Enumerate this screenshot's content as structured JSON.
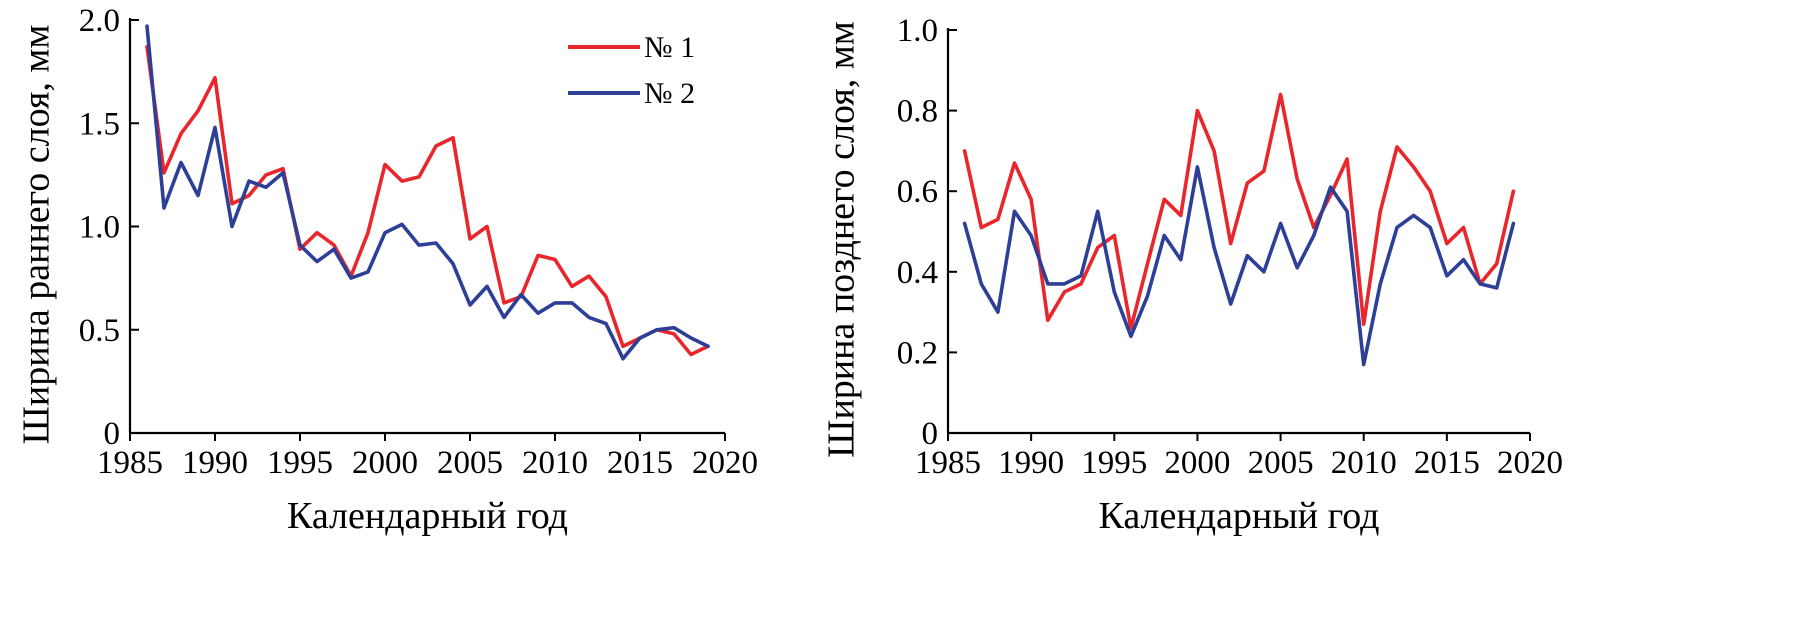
{
  "chart_data": [
    {
      "type": "line",
      "xlabel": "Календарный год",
      "ylabel": "Ширина раннего слоя, мм",
      "xlim": [
        1985,
        2020
      ],
      "ylim": [
        0,
        2.0
      ],
      "xticks": [
        1985,
        1990,
        1995,
        2000,
        2005,
        2010,
        2015,
        2020
      ],
      "xtick_labels": [
        "1985",
        "1990",
        "1995",
        "2000",
        "2005",
        "2010",
        "2015",
        "2020"
      ],
      "yticks": [
        0,
        0.5,
        1.0,
        1.5,
        2.0
      ],
      "ytick_labels": [
        "0",
        "0.5",
        "1.0",
        "1.5",
        "2.0"
      ],
      "legend": "top-right",
      "x": [
        1986,
        1987,
        1988,
        1989,
        1990,
        1991,
        1992,
        1993,
        1994,
        1995,
        1996,
        1997,
        1998,
        1999,
        2000,
        2001,
        2002,
        2003,
        2004,
        2005,
        2006,
        2007,
        2008,
        2009,
        2010,
        2011,
        2012,
        2013,
        2014,
        2015,
        2016,
        2017,
        2018,
        2019
      ],
      "series": [
        {
          "name": "№ 1",
          "color": "#e8262b",
          "values": [
            1.87,
            1.26,
            1.45,
            1.56,
            1.72,
            1.11,
            1.15,
            1.25,
            1.28,
            0.89,
            0.97,
            0.91,
            0.76,
            0.97,
            1.3,
            1.22,
            1.24,
            1.39,
            1.43,
            0.94,
            1.0,
            0.63,
            0.66,
            0.86,
            0.84,
            0.71,
            0.76,
            0.66,
            0.42,
            0.46,
            0.5,
            0.48,
            0.38,
            0.42
          ]
        },
        {
          "name": "№ 2",
          "color": "#2d3f97",
          "values": [
            1.97,
            1.09,
            1.31,
            1.15,
            1.48,
            1.0,
            1.22,
            1.19,
            1.26,
            0.91,
            0.83,
            0.89,
            0.75,
            0.78,
            0.97,
            1.01,
            0.91,
            0.92,
            0.82,
            0.62,
            0.71,
            0.56,
            0.67,
            0.58,
            0.63,
            0.63,
            0.56,
            0.53,
            0.36,
            0.46,
            0.5,
            0.51,
            0.46,
            0.42
          ]
        }
      ]
    },
    {
      "type": "line",
      "xlabel": "Календарный год",
      "ylabel": "Ширина позднего слоя, мм",
      "xlim": [
        1985,
        2020
      ],
      "ylim": [
        0,
        1.0
      ],
      "xticks": [
        1985,
        1990,
        1995,
        2000,
        2005,
        2010,
        2015,
        2020
      ],
      "xtick_labels": [
        "1985",
        "1990",
        "1995",
        "2000",
        "2005",
        "2010",
        "2015",
        "2020"
      ],
      "yticks": [
        0,
        0.2,
        0.4,
        0.6,
        0.8,
        1.0
      ],
      "ytick_labels": [
        "0",
        "0.2",
        "0.4",
        "0.6",
        "0.8",
        "1.0"
      ],
      "x": [
        1986,
        1987,
        1988,
        1989,
        1990,
        1991,
        1992,
        1993,
        1994,
        1995,
        1996,
        1997,
        1998,
        1999,
        2000,
        2001,
        2002,
        2003,
        2004,
        2005,
        2006,
        2007,
        2008,
        2009,
        2010,
        2011,
        2012,
        2013,
        2014,
        2015,
        2016,
        2017,
        2018,
        2019
      ],
      "series": [
        {
          "name": "№ 1",
          "color": "#e8262b",
          "values": [
            0.7,
            0.51,
            0.53,
            0.67,
            0.58,
            0.28,
            0.35,
            0.37,
            0.46,
            0.49,
            0.26,
            0.42,
            0.58,
            0.54,
            0.8,
            0.7,
            0.47,
            0.62,
            0.65,
            0.84,
            0.63,
            0.51,
            0.59,
            0.68,
            0.27,
            0.55,
            0.71,
            0.66,
            0.6,
            0.47,
            0.51,
            0.37,
            0.42,
            0.6
          ]
        },
        {
          "name": "№ 2",
          "color": "#2d3f97",
          "values": [
            0.52,
            0.37,
            0.3,
            0.55,
            0.49,
            0.37,
            0.37,
            0.39,
            0.55,
            0.35,
            0.24,
            0.34,
            0.49,
            0.43,
            0.66,
            0.46,
            0.32,
            0.44,
            0.4,
            0.52,
            0.41,
            0.49,
            0.61,
            0.55,
            0.17,
            0.37,
            0.51,
            0.54,
            0.51,
            0.39,
            0.43,
            0.37,
            0.36,
            0.52
          ]
        }
      ]
    }
  ]
}
